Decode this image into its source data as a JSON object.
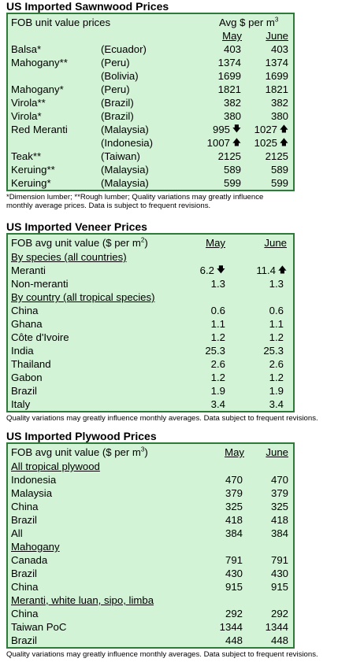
{
  "sawnwood": {
    "title": "US Imported Sawnwood Prices",
    "header_left": "FOB unit value prices",
    "header_right": "Avg $ per m",
    "header_sup": "3",
    "col_may": "May",
    "col_june": "June",
    "rows": [
      {
        "name": "Balsa*",
        "country": "(Ecuador)",
        "may": "403",
        "june": "403"
      },
      {
        "name": "Mahogany**",
        "country": "(Peru)",
        "may": "1374",
        "june": "1374"
      },
      {
        "name": "",
        "country": "(Bolivia)",
        "may": "1699",
        "june": "1699"
      },
      {
        "name": "Mahogany*",
        "country": "(Peru)",
        "may": "1821",
        "june": "1821"
      },
      {
        "name": "Virola**",
        "country": "(Brazil)",
        "may": "382",
        "june": "382"
      },
      {
        "name": "Virola*",
        "country": "(Brazil)",
        "may": "380",
        "june": "380"
      },
      {
        "name": "Red Meranti",
        "country": "(Malaysia)",
        "may": "995",
        "june": "1027"
      },
      {
        "name": "",
        "country": "(Indonesia)",
        "may": "1007",
        "june": "1025"
      },
      {
        "name": "Teak**",
        "country": "(Taiwan)",
        "may": "2125",
        "june": "2125"
      },
      {
        "name": "Keruing**",
        "country": "(Malaysia)",
        "may": "589",
        "june": "589"
      },
      {
        "name": "Keruing*",
        "country": "(Malaysia)",
        "may": "599",
        "june": "599"
      }
    ],
    "arrows": {
      "down": "🡇",
      "up": "🡅"
    },
    "note_1": "*Dimension lumber; **Rough lumber; Quality variations may greatly influence",
    "note_2": "monthly average prices. Data is subject to frequent revisions."
  },
  "veneer": {
    "title": "US Imported Veneer Prices",
    "header_left": "FOB avg unit value ($ per m",
    "header_sup": "2",
    "header_close": ")",
    "col_may": "May",
    "col_june": "June",
    "species_heading": "By species (all countries)",
    "species_rows": [
      {
        "name": "Meranti",
        "may": "6.2",
        "june": "11.4"
      },
      {
        "name": "Non-meranti",
        "may": "1.3",
        "june": "1.3"
      }
    ],
    "country_heading": "By country (all tropical species)",
    "country_rows": [
      {
        "name": "China",
        "may": "0.6",
        "june": "0.6"
      },
      {
        "name": "Ghana",
        "may": "1.1",
        "june": "1.1"
      },
      {
        "name": "Côte d'Ivoire",
        "may": "1.2",
        "june": "1.2"
      },
      {
        "name": "India",
        "may": "25.3",
        "june": "25.3"
      },
      {
        "name": "Thailand",
        "may": "2.6",
        "june": "2.6"
      },
      {
        "name": "Gabon",
        "may": "1.2",
        "june": "1.2"
      },
      {
        "name": "Brazil",
        "may": "1.9",
        "june": "1.9"
      },
      {
        "name": "Italy",
        "may": "3.4",
        "june": "3.4"
      }
    ],
    "note": "Quality variations may greatly influence monthly averages. Data subject to frequent revisions."
  },
  "plywood": {
    "title": "US Imported Plywood Prices",
    "header_left": "FOB avg unit value ($ per m",
    "header_sup": "3",
    "header_close": ")",
    "col_may": "May",
    "col_june": "June",
    "groups": [
      {
        "heading": "All tropical plywood",
        "rows": [
          {
            "name": "Indonesia",
            "may": "470",
            "june": "470"
          },
          {
            "name": "Malaysia",
            "may": "379",
            "june": "379"
          },
          {
            "name": "China",
            "may": "325",
            "june": "325"
          },
          {
            "name": "Brazil",
            "may": "418",
            "june": "418"
          },
          {
            "name": "All",
            "may": "384",
            "june": "384"
          }
        ]
      },
      {
        "heading": "Mahogany",
        "rows": [
          {
            "name": "Canada",
            "may": "791",
            "june": "791"
          },
          {
            "name": "Brazil",
            "may": "430",
            "june": "430"
          },
          {
            "name": "China",
            "may": "915",
            "june": "915"
          }
        ]
      },
      {
        "heading": "Meranti, white luan, sipo, limba",
        "rows": [
          {
            "name": "China",
            "may": "292",
            "june": "292"
          },
          {
            "name": "Taiwan PoC",
            "may": "1344",
            "june": "1344"
          },
          {
            "name": "Brazil",
            "may": "448",
            "june": "448"
          }
        ]
      }
    ],
    "note": "Quality variations may greatly influence monthly averages. Data subject to frequent revisions."
  }
}
